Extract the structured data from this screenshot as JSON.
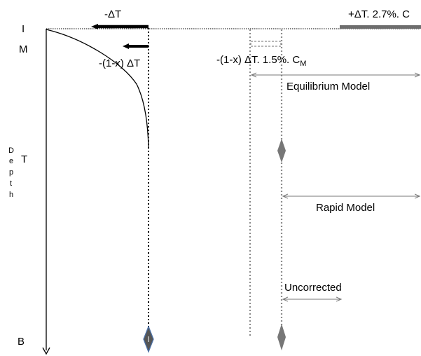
{
  "depth_labels": {
    "I": "I",
    "M": "M",
    "T": "T",
    "B": "B"
  },
  "axis_label": [
    "D",
    "e",
    "p",
    "t",
    "h"
  ],
  "annotations": {
    "minus_delta_t": "-ΔT",
    "minus_one_minus_x_delta_t": "-(1-x) ΔT",
    "plus_delta_t_2_7": "+ΔT. 2.7%. C",
    "minus_one_minus_x_delta_t_1_5": "-(1-x) ΔT. 1.5%. C",
    "cm_subscript": "M"
  },
  "models": {
    "equilibrium": "Equilibrium Model",
    "rapid": "Rapid Model",
    "uncorrected": "Uncorrected"
  },
  "colors": {
    "black": "#000000",
    "gray": "#808080",
    "gray_bar": "#6d6d6d",
    "dash_gray": "#8c8c8c",
    "diamond_edge": "#4a6fa5"
  }
}
